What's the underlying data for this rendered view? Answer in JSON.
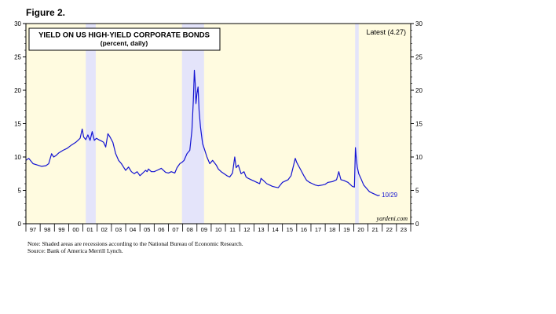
{
  "figure_label": "Figure 2.",
  "notes": {
    "line1": "Note: Shaded areas are recessions according to the National Bureau of Economic Research.",
    "line2": "Source: Bank of America Merrill Lynch."
  },
  "chart_data": {
    "type": "line",
    "title": "YIELD ON US HIGH-YIELD CORPORATE BONDS",
    "subtitle": "(percent, daily)",
    "latest_label": "Latest (4.27)",
    "end_label": "10/29",
    "watermark": "yardeni.com",
    "x_tick_labels": [
      "97",
      "98",
      "99",
      "00",
      "01",
      "02",
      "03",
      "04",
      "05",
      "06",
      "07",
      "08",
      "09",
      "10",
      "11",
      "12",
      "13",
      "14",
      "15",
      "16",
      "17",
      "18",
      "19",
      "20",
      "21",
      "22",
      "23"
    ],
    "xlim": [
      1997.0,
      2024.0
    ],
    "ylim": [
      0,
      30
    ],
    "y_ticks": [
      0,
      5,
      10,
      15,
      20,
      25,
      30
    ],
    "grid": false,
    "colors": {
      "line": "#1414d2",
      "background": "#fffbe0",
      "recession": "#e4e4fa"
    },
    "recessions": [
      {
        "start": 2001.2,
        "end": 2001.9
      },
      {
        "start": 2007.95,
        "end": 2009.5
      },
      {
        "start": 2020.1,
        "end": 2020.35
      }
    ],
    "series": [
      {
        "x": [
          1997.0,
          1997.2,
          1997.5,
          1997.8,
          1998.1,
          1998.4,
          1998.6,
          1998.8,
          1998.95,
          1999.1,
          1999.3,
          1999.6,
          1999.9,
          2000.2,
          2000.5,
          2000.8,
          2000.95,
          2001.05,
          2001.2,
          2001.35,
          2001.5,
          2001.65,
          2001.8,
          2001.95,
          2002.1,
          2002.3,
          2002.45,
          2002.6,
          2002.75,
          2002.9,
          2003.1,
          2003.3,
          2003.5,
          2003.7,
          2003.85,
          2004.0,
          2004.2,
          2004.4,
          2004.6,
          2004.8,
          2005.0,
          2005.2,
          2005.4,
          2005.5,
          2005.6,
          2005.8,
          2006.0,
          2006.2,
          2006.5,
          2006.8,
          2007.0,
          2007.2,
          2007.45,
          2007.6,
          2007.8,
          2007.95,
          2008.1,
          2008.3,
          2008.5,
          2008.65,
          2008.75,
          2008.82,
          2008.88,
          2008.93,
          2009.0,
          2009.08,
          2009.15,
          2009.25,
          2009.4,
          2009.55,
          2009.7,
          2009.9,
          2010.1,
          2010.35,
          2010.5,
          2010.7,
          2010.9,
          2011.1,
          2011.3,
          2011.5,
          2011.65,
          2011.75,
          2011.9,
          2012.1,
          2012.3,
          2012.45,
          2012.6,
          2012.8,
          2013.0,
          2013.2,
          2013.4,
          2013.5,
          2013.7,
          2013.9,
          2014.1,
          2014.3,
          2014.5,
          2014.7,
          2014.85,
          2015.0,
          2015.2,
          2015.4,
          2015.6,
          2015.75,
          2015.9,
          2016.0,
          2016.1,
          2016.3,
          2016.5,
          2016.7,
          2016.9,
          2017.1,
          2017.3,
          2017.5,
          2017.8,
          2018.0,
          2018.2,
          2018.5,
          2018.8,
          2018.95,
          2019.1,
          2019.3,
          2019.6,
          2019.9,
          2020.05,
          2020.12,
          2020.18,
          2020.25,
          2020.35,
          2020.5,
          2020.7,
          2020.9,
          2021.1,
          2021.3,
          2021.5,
          2021.7,
          2021.83
        ],
        "y": [
          9.5,
          9.8,
          9.0,
          8.8,
          8.6,
          8.7,
          9.0,
          10.5,
          10.0,
          10.2,
          10.6,
          11.0,
          11.3,
          11.8,
          12.2,
          12.8,
          14.2,
          13.0,
          12.6,
          13.3,
          12.5,
          13.8,
          12.5,
          12.8,
          12.6,
          12.4,
          12.2,
          11.5,
          13.5,
          13.0,
          12.2,
          10.5,
          9.5,
          9.0,
          8.5,
          8.0,
          8.5,
          7.8,
          7.5,
          7.8,
          7.2,
          7.6,
          8.0,
          7.8,
          8.2,
          7.8,
          7.8,
          8.0,
          8.3,
          7.7,
          7.6,
          7.8,
          7.6,
          8.4,
          9.0,
          9.2,
          9.5,
          10.5,
          11.0,
          14.0,
          18.5,
          23.0,
          21.0,
          18.0,
          19.5,
          20.5,
          17.0,
          14.5,
          12.0,
          11.0,
          10.0,
          9.0,
          9.5,
          8.8,
          8.2,
          7.8,
          7.5,
          7.2,
          7.0,
          7.6,
          10.0,
          8.4,
          8.8,
          7.5,
          7.8,
          7.0,
          6.8,
          6.6,
          6.4,
          6.2,
          6.0,
          6.8,
          6.4,
          6.0,
          5.8,
          5.6,
          5.5,
          5.4,
          5.8,
          6.2,
          6.4,
          6.6,
          7.2,
          8.5,
          9.8,
          9.2,
          8.8,
          8.0,
          7.2,
          6.5,
          6.2,
          6.0,
          5.8,
          5.7,
          5.8,
          5.9,
          6.2,
          6.3,
          6.6,
          7.8,
          6.6,
          6.5,
          6.2,
          5.6,
          5.5,
          11.4,
          9.8,
          8.5,
          7.5,
          6.8,
          5.8,
          5.3,
          4.8,
          4.6,
          4.4,
          4.2,
          4.27
        ]
      }
    ]
  }
}
